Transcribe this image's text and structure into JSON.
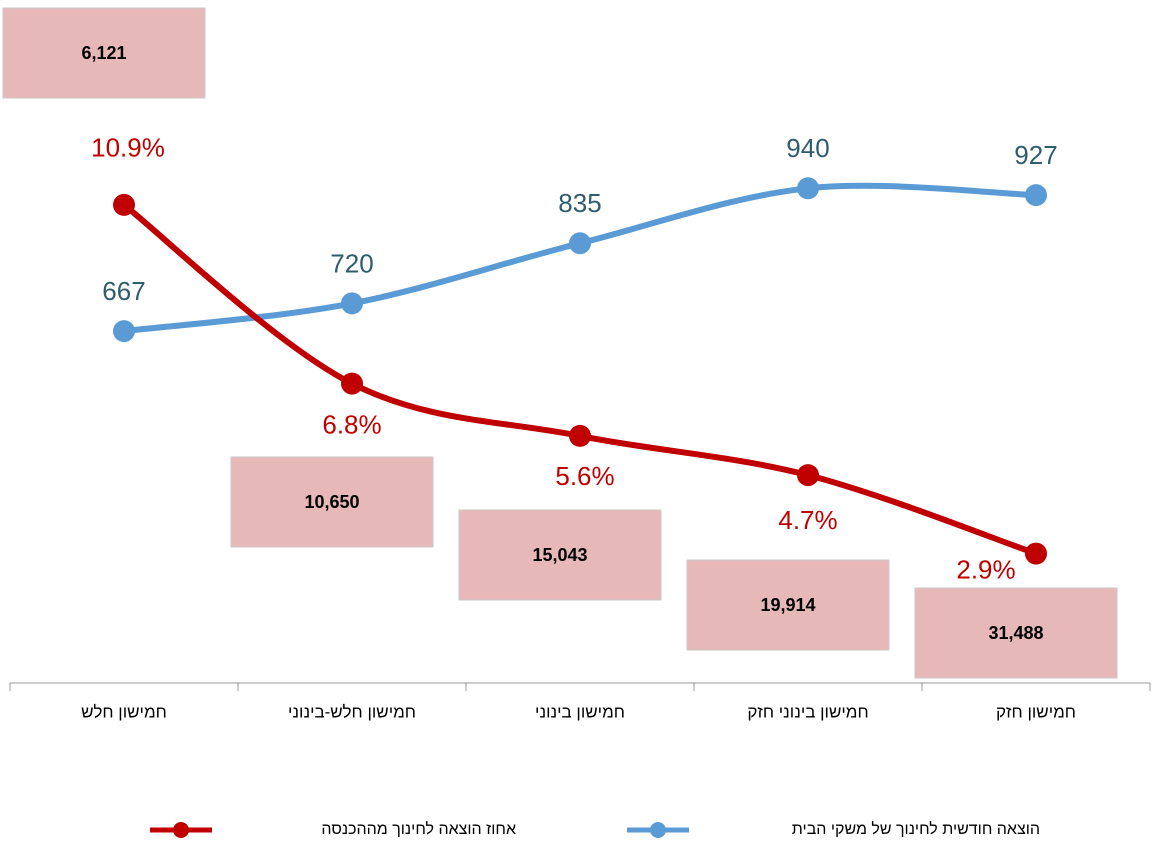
{
  "chart_data": {
    "type": "line",
    "categories": [
      "חמישון חלש",
      "חמישון חלש-בינוני",
      "חמישון בינוני",
      "חמישון בינוני חזק",
      "חמישון חזק"
    ],
    "ylim": [
      0,
      1300
    ],
    "y2lim": [
      0,
      15.6
    ],
    "series": [
      {
        "name": "הוצאה חודשית לחינוך של משקי הבית",
        "color": "#5b9bd5",
        "label_color": "#2f5d6e",
        "values": [
          667,
          720,
          835,
          940,
          927
        ]
      },
      {
        "name": "אחוז הוצאה לחינוך מההכנסה",
        "color": "#c00000",
        "axis": "y2",
        "values": [
          10.9,
          6.8,
          5.6,
          4.7,
          2.9
        ],
        "value_labels": [
          "10.9%",
          "6.8%",
          "5.6%",
          "4.7%",
          "2.9%"
        ]
      }
    ],
    "boxes": {
      "color": "#e6b8b7",
      "values": [
        6121,
        10650,
        15043,
        19914,
        31488
      ],
      "value_labels": [
        "6,121",
        "10,650",
        "15,043",
        "19,914",
        "31,488"
      ]
    }
  }
}
